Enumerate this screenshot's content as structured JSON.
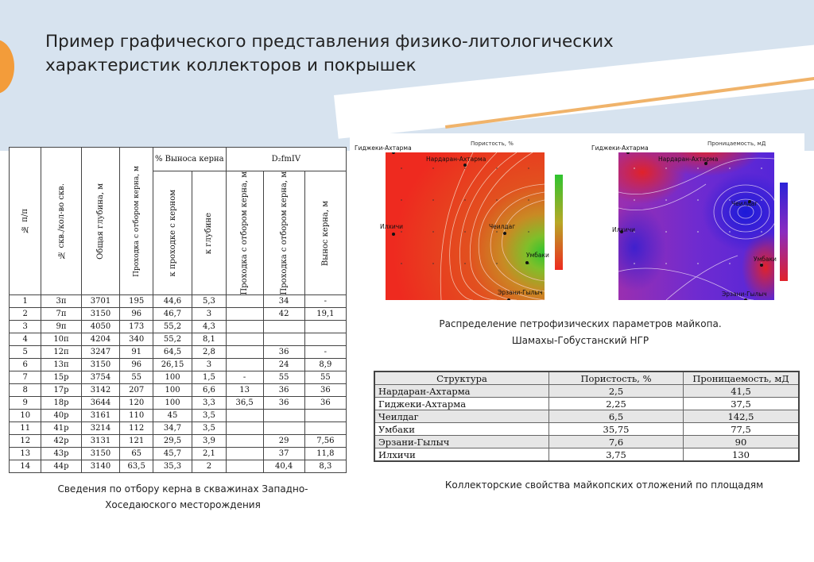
{
  "title": {
    "line1": "Пример графического представления физико-литологических",
    "line2": "характеристик коллекторов и покрышек"
  },
  "core_table": {
    "headers": {
      "num": "№ п/п",
      "wells": "№ скв./кол-во скв.",
      "depth": "Общая глубина, м",
      "cored": "Проходка с отбором керна, м",
      "recovery_group": "% Выноса керна",
      "rec_pass": "к проходке с керном",
      "rec_depth": "к глубине",
      "strat_group": "D₂fmIV",
      "s_pass": "Проходка с отбором керна, м",
      "s_cored": "Проходка с отбором керна, м",
      "s_out": "Вынос керна, м"
    },
    "rows": [
      [
        "1",
        "3п",
        "3701",
        "195",
        "44,6",
        "5,3",
        "",
        "34",
        "-"
      ],
      [
        "2",
        "7п",
        "3150",
        "96",
        "46,7",
        "3",
        "",
        "42",
        "19,1"
      ],
      [
        "3",
        "9п",
        "4050",
        "173",
        "55,2",
        "4,3",
        "",
        "",
        ""
      ],
      [
        "4",
        "10п",
        "4204",
        "340",
        "55,2",
        "8,1",
        "",
        "",
        ""
      ],
      [
        "5",
        "12п",
        "3247",
        "91",
        "64,5",
        "2,8",
        "",
        "36",
        "-"
      ],
      [
        "6",
        "13п",
        "3150",
        "96",
        "26,15",
        "3",
        "",
        "24",
        "8,9"
      ],
      [
        "7",
        "15р",
        "3754",
        "55",
        "100",
        "1,5",
        "-",
        "55",
        "55"
      ],
      [
        "8",
        "17р",
        "3142",
        "207",
        "100",
        "6,6",
        "13",
        "36",
        "36"
      ],
      [
        "9",
        "18р",
        "3644",
        "120",
        "100",
        "3,3",
        "36,5",
        "36",
        "36"
      ],
      [
        "10",
        "40р",
        "3161",
        "110",
        "45",
        "3,5",
        "",
        "",
        ""
      ],
      [
        "11",
        "41р",
        "3214",
        "112",
        "34,7",
        "3,5",
        "",
        "",
        ""
      ],
      [
        "12",
        "42р",
        "3131",
        "121",
        "29,5",
        "3,9",
        "",
        "29",
        "7,56"
      ],
      [
        "13",
        "43р",
        "3150",
        "65",
        "45,7",
        "2,1",
        "",
        "37",
        "11,8"
      ],
      [
        "14",
        "44р",
        "3140",
        "63,5",
        "35,3",
        "2",
        "",
        "40,4",
        "8,3"
      ]
    ]
  },
  "left_caption": {
    "line1": "Сведения по отбору керна в скважинах Западно-",
    "line2": "Хоседаюского месторождения"
  },
  "maps": {
    "porosity": {
      "title": "Пористость, %",
      "labels": {
        "gidzheki": "Гиджеки-Ахтарма",
        "nardaran": "Нардаран-Ахтарма",
        "cheildag": "Чеилдаг",
        "ilkhichi": "Илхичи",
        "umbaki": "Умбаки",
        "erzani": "Эрзани-Гылыч"
      },
      "colors": {
        "high": "#2fc42f",
        "low": "#ee2a1f"
      }
    },
    "permeability": {
      "title": "Проницаемость, мД",
      "labels": {
        "gidzheki": "Гиджеки-Ахтарма",
        "nardaran": "Нардаран-Ахтарма",
        "cheildag": "Чеилдаг",
        "ilkhichi": "Илхичи",
        "umbaki": "Умбаки",
        "erzani": "Эрзани-Гылыч"
      },
      "colors": {
        "high": "#2a22d8",
        "low": "#e0222a"
      }
    }
  },
  "mid_caption": {
    "line1": "Распределение петрофизических параметров майкопа.",
    "line2": "Шамахы-Гобустанский НГР"
  },
  "props_table": {
    "headers": [
      "Структура",
      "Пористость, %",
      "Проницаемость, мД"
    ],
    "rows": [
      [
        "Нардаран-Ахтарма",
        "2,5",
        "41,5"
      ],
      [
        "Гиджеки-Ахтарма",
        "2,25",
        "37,5"
      ],
      [
        "Чеилдаг",
        "6,5",
        "142,5"
      ],
      [
        "Умбаки",
        "35,75",
        "77,5"
      ],
      [
        "Эрзани-Гылыч",
        "7,6",
        "90"
      ],
      [
        "Илхичи",
        "3,75",
        "130"
      ]
    ]
  },
  "right_caption": "Коллекторские свойства майкопских отложений по площадям",
  "colors": {
    "header_band": "#d7e3ef",
    "accent_orange": "#f39c3a"
  }
}
